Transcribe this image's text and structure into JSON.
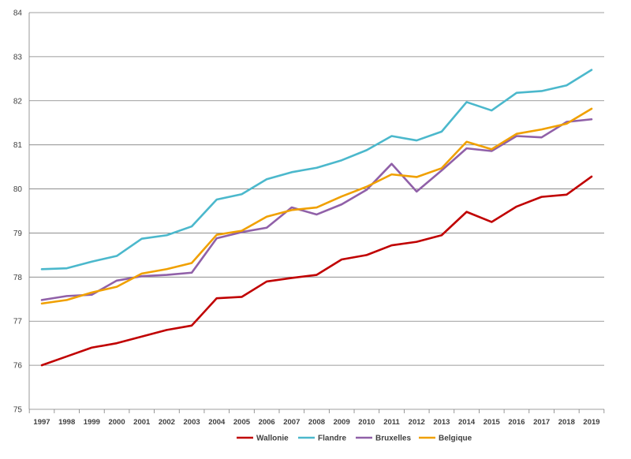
{
  "chart_data": {
    "type": "line",
    "title": "",
    "xlabel": "",
    "ylabel": "",
    "x": [
      "1997",
      "1998",
      "1999",
      "2000",
      "2001",
      "2002",
      "2003",
      "2004",
      "2005",
      "2006",
      "2007",
      "2008",
      "2009",
      "2010",
      "2011",
      "2012",
      "2013",
      "2014",
      "2015",
      "2016",
      "2017",
      "2018",
      "2019"
    ],
    "ylim": [
      75,
      84
    ],
    "yticks": [
      "75",
      "76",
      "77",
      "78",
      "79",
      "80",
      "81",
      "82",
      "83",
      "84"
    ],
    "grid": true,
    "legend_position": "bottom",
    "series": [
      {
        "name": "Wallonie",
        "color": "#c00000",
        "values": [
          76.0,
          76.2,
          76.4,
          76.5,
          76.65,
          76.8,
          76.9,
          77.52,
          77.55,
          77.9,
          77.98,
          78.05,
          78.4,
          78.5,
          78.72,
          78.8,
          78.95,
          79.48,
          79.25,
          79.6,
          79.82,
          79.87,
          80.28
        ]
      },
      {
        "name": "Flandre",
        "color": "#4bb8cc",
        "values": [
          78.18,
          78.2,
          78.35,
          78.48,
          78.87,
          78.95,
          79.15,
          79.76,
          79.88,
          80.22,
          80.38,
          80.48,
          80.65,
          80.88,
          81.2,
          81.1,
          81.3,
          81.97,
          81.78,
          82.18,
          82.22,
          82.35,
          82.7
        ]
      },
      {
        "name": "Bruxelles",
        "color": "#9060a8",
        "values": [
          77.48,
          77.57,
          77.6,
          77.92,
          78.02,
          78.05,
          78.1,
          78.88,
          79.02,
          79.12,
          79.58,
          79.42,
          79.65,
          79.98,
          80.57,
          79.94,
          80.42,
          80.92,
          80.86,
          81.2,
          81.17,
          81.52,
          81.58
        ]
      },
      {
        "name": "Belgique",
        "color": "#f0a000",
        "values": [
          77.4,
          77.48,
          77.65,
          77.78,
          78.08,
          78.18,
          78.32,
          78.96,
          79.05,
          79.37,
          79.52,
          79.58,
          79.83,
          80.05,
          80.33,
          80.27,
          80.47,
          81.07,
          80.9,
          81.25,
          81.35,
          81.48,
          81.82
        ]
      }
    ]
  }
}
